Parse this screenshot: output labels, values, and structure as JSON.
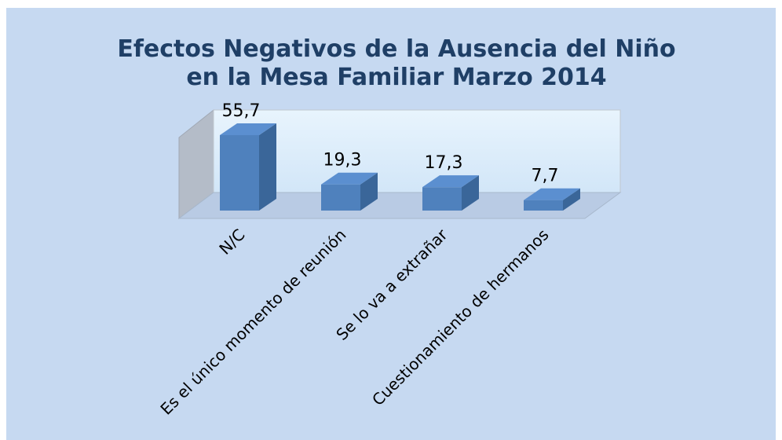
{
  "chart_data": {
    "type": "bar3d",
    "title": [
      "Efectos Negativos de la  Ausencia del Niño",
      "en la Mesa Familiar Marzo 2014"
    ],
    "categories": [
      "N/C",
      "Es el único momento de reunión",
      "Se lo va a extrañar",
      "Cuestionamiento de hermanos"
    ],
    "values": [
      55.7,
      19.3,
      17.3,
      7.7
    ],
    "value_labels": [
      "55,7",
      "19,3",
      "17,3",
      "7,7"
    ],
    "color": "#4f81bd"
  }
}
